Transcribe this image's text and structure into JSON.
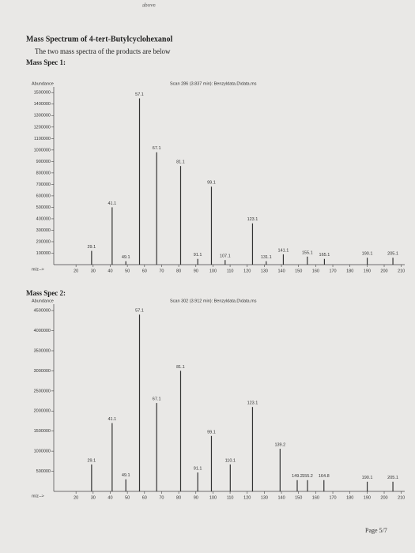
{
  "document": {
    "top_note": "above",
    "title": "Mass Spectrum of 4-tert-Butylcyclohexanol",
    "subtitle": "The two mass spectra of the products are below",
    "page": "Page 5/7"
  },
  "chart_data": [
    {
      "type": "stick",
      "heading": "Mass Spec 1:",
      "title": "Scan 286 (3.837 min): Benzyldata.D\\data.ms",
      "ylabel": "Abundance",
      "xlabel": "m/z-->",
      "color": "#333333",
      "x": [
        29.1,
        41.1,
        49.1,
        57.1,
        67.1,
        81.1,
        91.1,
        99.1,
        107.1,
        123.1,
        131.1,
        141.1,
        155.1,
        165.1,
        190.1,
        205.1
      ],
      "values": [
        120000,
        500000,
        30000,
        1450000,
        980000,
        860000,
        50000,
        680000,
        40000,
        360000,
        30000,
        90000,
        70000,
        50000,
        60000,
        60000
      ],
      "xlim": [
        7,
        212
      ],
      "xticks": [
        20,
        30,
        40,
        50,
        60,
        70,
        80,
        90,
        100,
        110,
        120,
        130,
        140,
        150,
        160,
        170,
        180,
        190,
        200,
        210
      ],
      "ylim": [
        0,
        1550000
      ],
      "yticks": [
        100000,
        200000,
        300000,
        400000,
        500000,
        600000,
        700000,
        800000,
        900000,
        1000000,
        1100000,
        1200000,
        1300000,
        1400000,
        1500000
      ]
    },
    {
      "type": "stick",
      "heading": "Mass Spec 2:",
      "title": "Scan 302 (3.912 min): Benzyldata.D\\data.ms",
      "ylabel": "Abundance",
      "xlabel": "m/z-->",
      "color": "#333333",
      "x": [
        29.1,
        41.1,
        49.1,
        57.1,
        67.1,
        81.1,
        91.1,
        99.1,
        110.1,
        123.1,
        139.2,
        149.2,
        155.2,
        164.8,
        190.1,
        205.1
      ],
      "values": [
        670000,
        1700000,
        300000,
        4400000,
        2200000,
        3000000,
        470000,
        1380000,
        670000,
        2100000,
        1060000,
        280000,
        280000,
        280000,
        240000,
        240000
      ],
      "xlim": [
        7,
        212
      ],
      "xticks": [
        20,
        30,
        40,
        50,
        60,
        70,
        80,
        90,
        100,
        110,
        120,
        130,
        140,
        150,
        160,
        170,
        180,
        190,
        200,
        210
      ],
      "ylim": [
        0,
        4660000
      ],
      "yticks": [
        500000,
        1000000,
        1500000,
        2000000,
        2500000,
        3000000,
        3500000,
        4000000,
        4500000
      ]
    }
  ]
}
